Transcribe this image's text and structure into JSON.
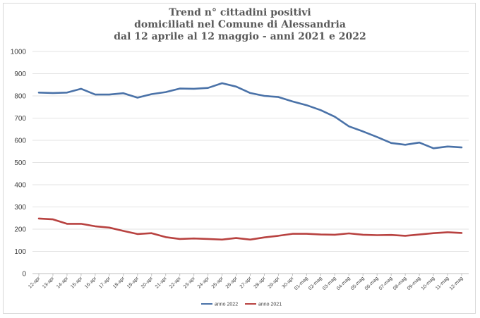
{
  "chart_data": {
    "type": "line",
    "title_lines": [
      "Trend n° cittadini positivi",
      "domiciliati nel Comune di Alessandria",
      "dal 12 aprile al 12 maggio - anni 2021 e 2022"
    ],
    "xlabel": "",
    "ylabel": "",
    "ylim": [
      0,
      1000
    ],
    "yticks": [
      0,
      100,
      200,
      300,
      400,
      500,
      600,
      700,
      800,
      900,
      1000
    ],
    "grid": true,
    "legend_position": "bottom",
    "categories": [
      "12-apr",
      "13-apr",
      "14-apr",
      "15-apr",
      "16-apr",
      "17-apr",
      "18-apr",
      "19-apr",
      "20-apr",
      "21-apr",
      "22-apr",
      "23-apr",
      "24-apr",
      "25-apr",
      "26-apr",
      "27-apr",
      "28-apr",
      "29-apr",
      "30-apr",
      "01-mag",
      "02-mag",
      "03-mag",
      "04-mag",
      "05-mag",
      "06-mag",
      "07-mag",
      "08-mag",
      "09-mag",
      "10-mag",
      "11-mag",
      "12-mag"
    ],
    "series": [
      {
        "name": "anno 2022",
        "color": "#4a72a8",
        "values": [
          815,
          813,
          815,
          832,
          806,
          806,
          812,
          792,
          808,
          817,
          833,
          832,
          836,
          857,
          842,
          813,
          800,
          795,
          775,
          758,
          736,
          706,
          663,
          640,
          615,
          588,
          580,
          590,
          564,
          572,
          568
        ]
      },
      {
        "name": "anno 2021",
        "color": "#b84240",
        "values": [
          248,
          244,
          224,
          224,
          213,
          207,
          192,
          178,
          182,
          164,
          156,
          158,
          156,
          153,
          160,
          153,
          163,
          170,
          179,
          179,
          176,
          175,
          181,
          175,
          173,
          174,
          170,
          176,
          182,
          186,
          183
        ]
      }
    ]
  }
}
